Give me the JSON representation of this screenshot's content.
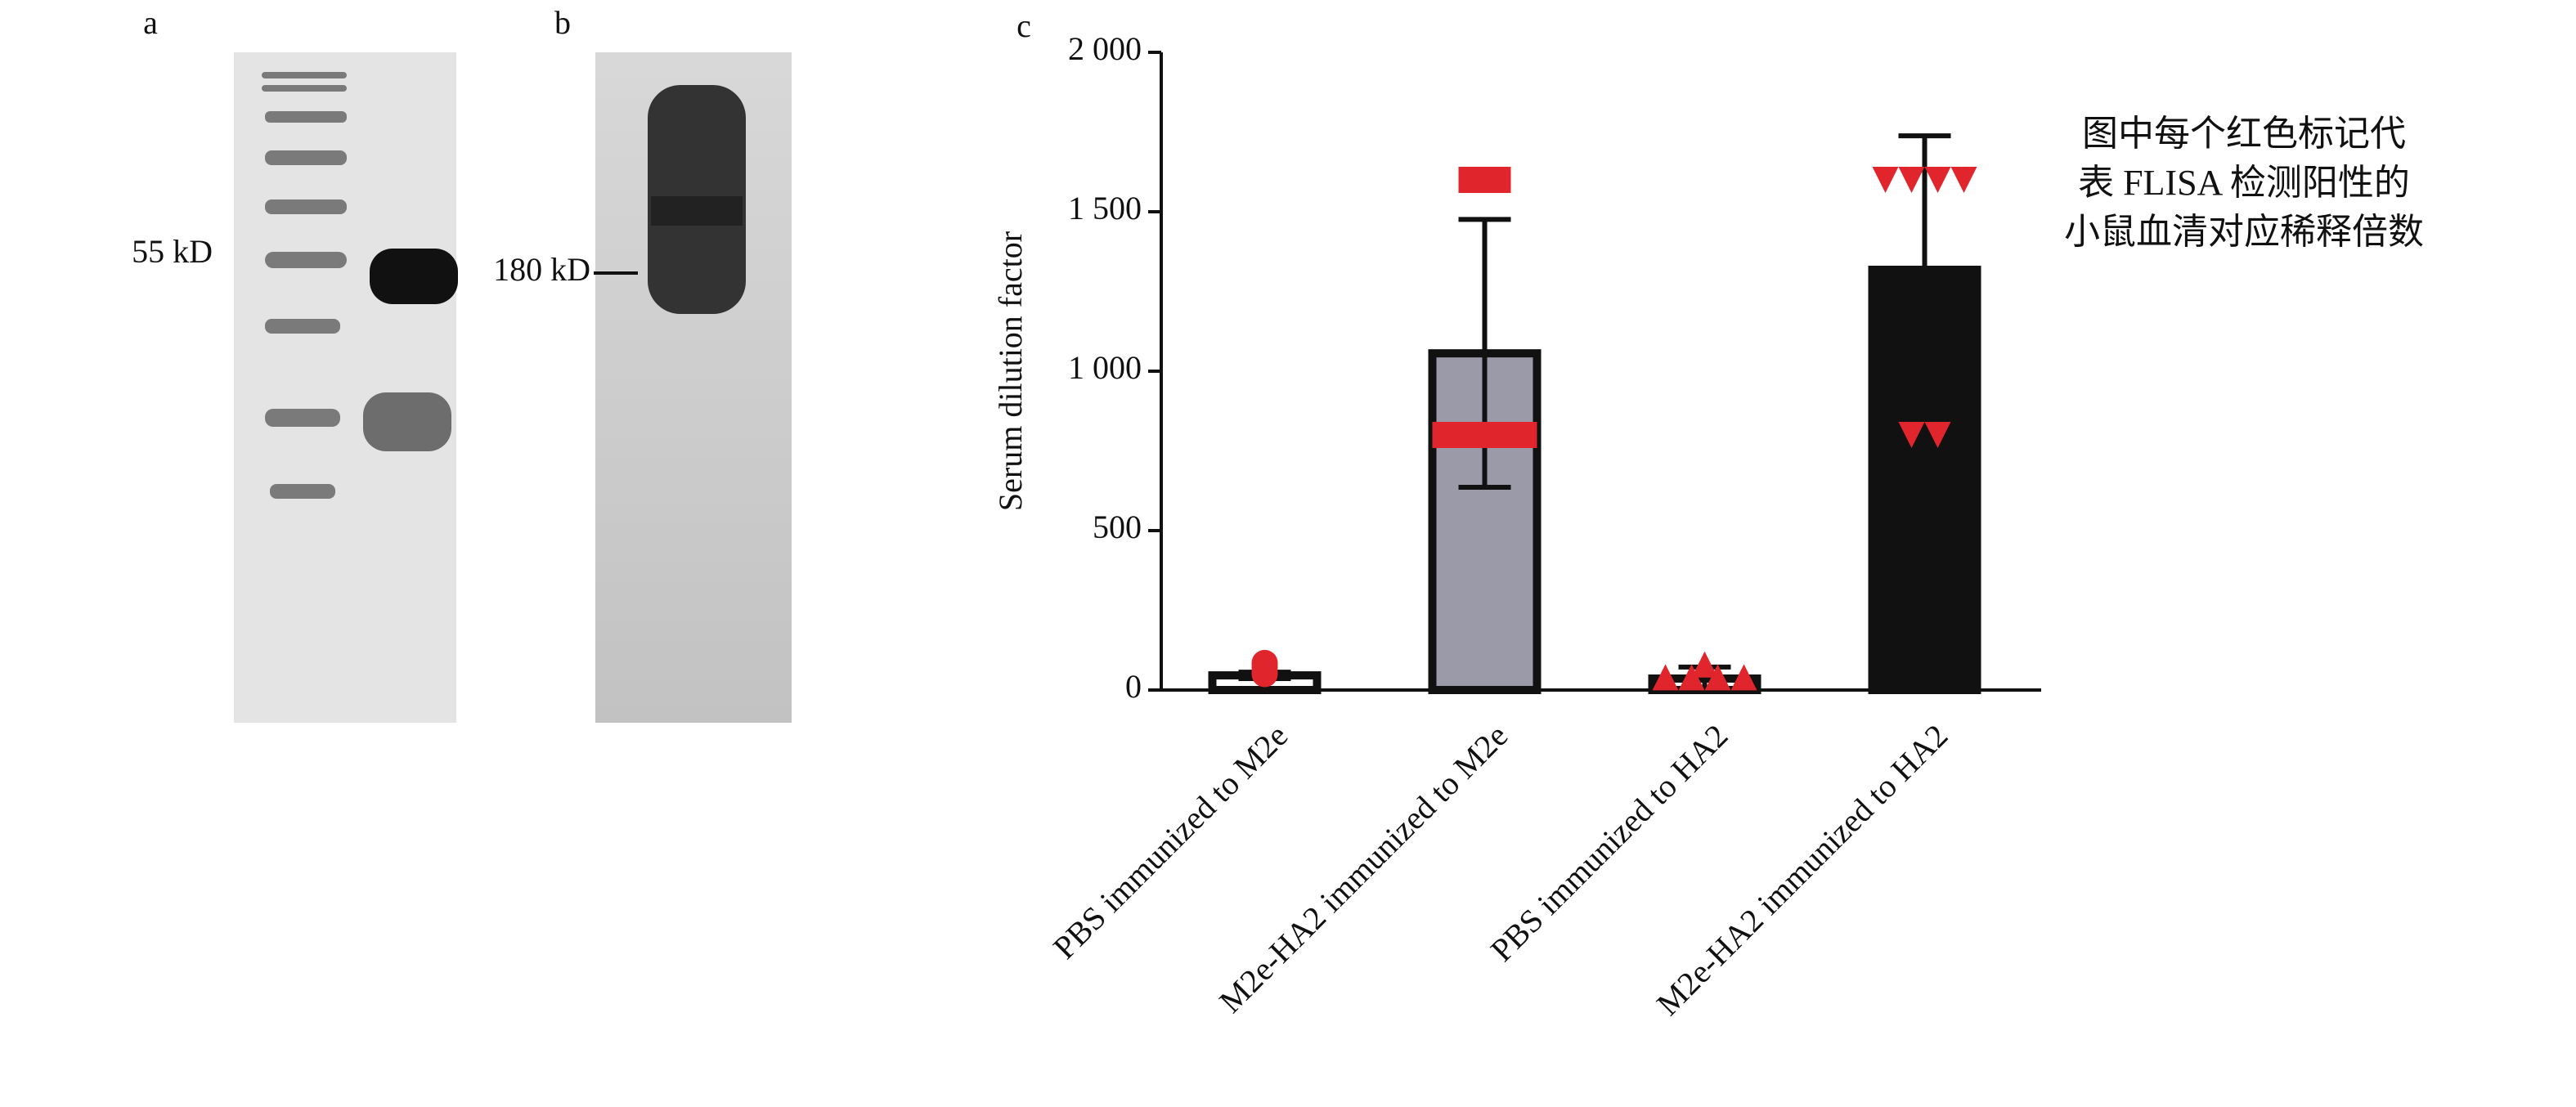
{
  "panel_labels": [
    "a",
    "b",
    "c"
  ],
  "blot_labels": [
    "55 kD",
    "180 kD"
  ],
  "chart_data": {
    "type": "bar",
    "ylabel": "Serum dilution factor",
    "categories": [
      "PBS immunized to M2e",
      "M2e-HA2 immunized to M2e",
      "PBS immunized to HA2",
      "M2e-HA2 immunized to HA2"
    ],
    "values": [
      46,
      1056,
      36,
      1318
    ],
    "errors": [
      10,
      420,
      36,
      420
    ],
    "colors": [
      "#ffffff",
      "#9a9aa8",
      "#ffffff",
      "#111111"
    ],
    "points": [
      [
        85,
        80,
        70,
        55,
        50
      ],
      [
        1600,
        1600,
        800,
        800,
        800,
        800
      ],
      [
        40,
        40,
        80,
        40,
        40
      ],
      [
        1600,
        1600,
        1600,
        1600,
        800,
        800
      ]
    ],
    "markers": [
      "circle",
      "square",
      "triangle",
      "triangle-down"
    ],
    "point_color": "#e0262c",
    "ylim": [
      0,
      2000
    ],
    "yticks": [
      0,
      500,
      {
        "value": 1000,
        "label": "1 000"
      },
      {
        "value": 1500,
        "label": "1 500"
      },
      {
        "value": 2000,
        "label": "2 000"
      }
    ],
    "annotation": [
      "图中每个红色标记代",
      "表 FLISA 检测阳性的",
      "小鼠血清对应稀释倍数"
    ]
  }
}
